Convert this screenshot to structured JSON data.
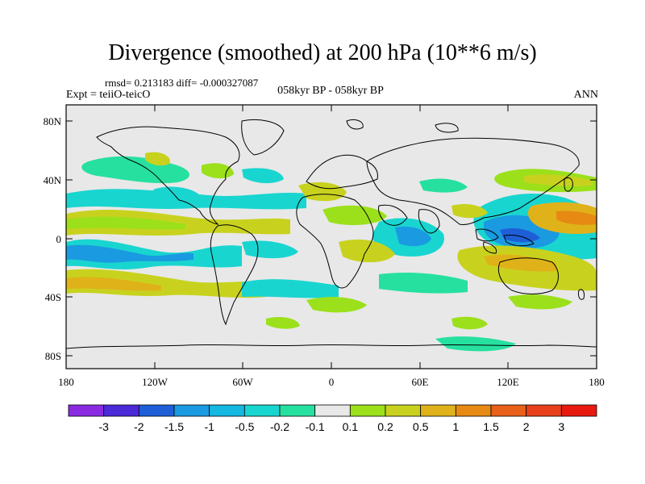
{
  "title": "Divergence (smoothed) at 200 hPa (10**6 m/s)",
  "stats": "rmsd= 0.213183 diff= -0.000327087",
  "experiment": "Expt = teiiO-teicO",
  "period": "058kyr BP - 058kyr BP",
  "season": "ANN",
  "map": {
    "y_ticks": [
      "80N",
      "40N",
      "0",
      "40S",
      "80S"
    ],
    "x_ticks": [
      "180",
      "120W",
      "60W",
      "0",
      "60E",
      "120E",
      "180"
    ],
    "background_color": "#e8e8e8"
  },
  "colorbar": {
    "labels": [
      "-3",
      "-2",
      "-1.5",
      "-1",
      "-0.5",
      "-0.2",
      "-0.1",
      "0.1",
      "0.2",
      "0.5",
      "1",
      "1.5",
      "2",
      "3"
    ],
    "colors": [
      "#8a2be2",
      "#4b2ad8",
      "#1e5fd8",
      "#1a9ae0",
      "#14b8e0",
      "#19d5d0",
      "#26e0a0",
      "#e8e8e8",
      "#9be01a",
      "#c8d21e",
      "#e0b21a",
      "#e68a14",
      "#e8601a",
      "#e8401a",
      "#e81a10"
    ]
  }
}
